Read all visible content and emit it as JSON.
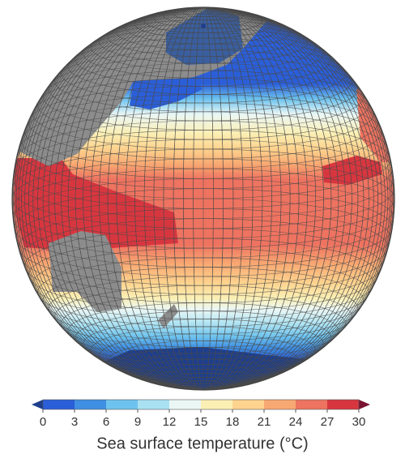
{
  "colorbar": {
    "label": "Sea surface temperature (°C)",
    "ticks": [
      0,
      3,
      6,
      9,
      12,
      15,
      18,
      21,
      24,
      27,
      30
    ],
    "colors": [
      "#2b5fd9",
      "#3f8fe2",
      "#6ec3ee",
      "#a9e1f2",
      "#eaf7f5",
      "#fbefb4",
      "#fdd38e",
      "#f8a872",
      "#ee7360",
      "#d8363f"
    ],
    "under_color": "#1f3f8c",
    "over_color": "#7b1232"
  }
}
